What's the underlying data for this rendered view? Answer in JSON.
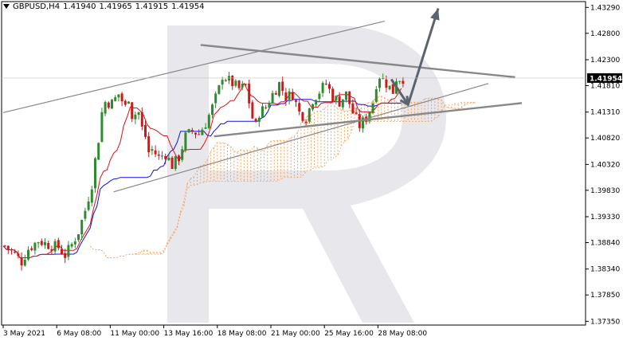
{
  "header": {
    "symbol": "GBPUSD,H4",
    "open": "1.41940",
    "high": "1.41965",
    "low": "1.41915",
    "close": "1.41954"
  },
  "colors": {
    "bull": "#2e8b2e",
    "bear": "#d01818",
    "tenkan": "#e01010",
    "kijun": "#1010e0",
    "cloud": "#f4a460",
    "trend": "#888888",
    "forecast": "#5a6470",
    "watermark": "#e8e8ec"
  },
  "chart_data": {
    "type": "candlestick",
    "title": "GBPUSD,H4",
    "y_ticks": [
      1.4329,
      1.428,
      1.423,
      1.4181,
      1.4131,
      1.4082,
      1.4032,
      1.3983,
      1.3933,
      1.3884,
      1.3834,
      1.3785,
      1.3735
    ],
    "y_tick_labels": [
      "1.43290",
      "1.42800",
      "1.42300",
      "1.41810",
      "1.41310",
      "1.40820",
      "1.40320",
      "1.39830",
      "1.39330",
      "1.38840",
      "1.38340",
      "1.37850",
      "1.37350"
    ],
    "ylim": [
      1.3728,
      1.434
    ],
    "current_price": "1.41954",
    "current_price_value": 1.41954,
    "x_labels": [
      "3 May 2021",
      "6 May 08:00",
      "11 May 00:00",
      "13 May 16:00",
      "18 May 08:00",
      "21 May 00:00",
      "25 May 16:00",
      "28 May 08:00"
    ],
    "x_label_bars": [
      0,
      16,
      32,
      48,
      64,
      80,
      96,
      112
    ],
    "bar_count": 120,
    "close_path": [
      [
        0,
        1.3878
      ],
      [
        3,
        1.3862
      ],
      [
        5,
        1.3848
      ],
      [
        7,
        1.3872
      ],
      [
        10,
        1.3888
      ],
      [
        13,
        1.388
      ],
      [
        16,
        1.3875
      ],
      [
        18,
        1.386
      ],
      [
        20,
        1.388
      ],
      [
        22,
        1.3905
      ],
      [
        24,
        1.3945
      ],
      [
        26,
        1.3995
      ],
      [
        27,
        1.404
      ],
      [
        28,
        1.408
      ],
      [
        29,
        1.413
      ],
      [
        30,
        1.415
      ],
      [
        32,
        1.4148
      ],
      [
        34,
        1.4165
      ],
      [
        36,
        1.414
      ],
      [
        37,
        1.416
      ],
      [
        38,
        1.4125
      ],
      [
        40,
        1.413
      ],
      [
        41,
        1.41
      ],
      [
        42,
        1.4085
      ],
      [
        43,
        1.4055
      ],
      [
        44,
        1.406
      ],
      [
        46,
        1.4045
      ],
      [
        48,
        1.4052
      ],
      [
        50,
        1.403
      ],
      [
        52,
        1.4045
      ],
      [
        54,
        1.4085
      ],
      [
        56,
        1.4095
      ],
      [
        58,
        1.409
      ],
      [
        60,
        1.411
      ],
      [
        62,
        1.414
      ],
      [
        64,
        1.4175
      ],
      [
        65,
        1.42
      ],
      [
        66,
        1.4195
      ],
      [
        68,
        1.4185
      ],
      [
        70,
        1.4175
      ],
      [
        72,
        1.418
      ],
      [
        73,
        1.415
      ],
      [
        74,
        1.412
      ],
      [
        75,
        1.4105
      ],
      [
        76,
        1.413
      ],
      [
        78,
        1.414
      ],
      [
        80,
        1.4165
      ],
      [
        82,
        1.4185
      ],
      [
        84,
        1.416
      ],
      [
        86,
        1.4165
      ],
      [
        88,
        1.413
      ],
      [
        90,
        1.412
      ],
      [
        92,
        1.4155
      ],
      [
        94,
        1.417
      ],
      [
        96,
        1.4185
      ],
      [
        98,
        1.416
      ],
      [
        100,
        1.415
      ],
      [
        102,
        1.4165
      ],
      [
        104,
        1.413
      ],
      [
        106,
        1.4105
      ],
      [
        108,
        1.412
      ],
      [
        110,
        1.415
      ],
      [
        111,
        1.4185
      ],
      [
        112,
        1.42
      ],
      [
        114,
        1.4185
      ],
      [
        116,
        1.417
      ],
      [
        117,
        1.4195
      ],
      [
        119,
        1.4195
      ]
    ],
    "ichimoku_tenkan_color": "red",
    "ichimoku_kijun_color": "blue",
    "trend_lines": [
      {
        "name": "upper-channel",
        "from": [
          0,
          1.413
        ],
        "to": [
          114,
          1.4303
        ]
      },
      {
        "name": "lower-channel",
        "from": [
          33,
          1.398
        ],
        "to": [
          145,
          1.4185
        ]
      },
      {
        "name": "descending-resistance",
        "from": [
          59,
          1.4258
        ],
        "to": [
          153,
          1.4197
        ]
      },
      {
        "name": "ascending-support",
        "from": [
          63,
          1.4085
        ],
        "to": [
          155,
          1.4148
        ]
      }
    ],
    "forecast_path": [
      [
        116,
        1.4193
      ],
      [
        121,
        1.4145
      ],
      [
        130,
        1.4327
      ]
    ],
    "grid": false,
    "legend": "none"
  }
}
